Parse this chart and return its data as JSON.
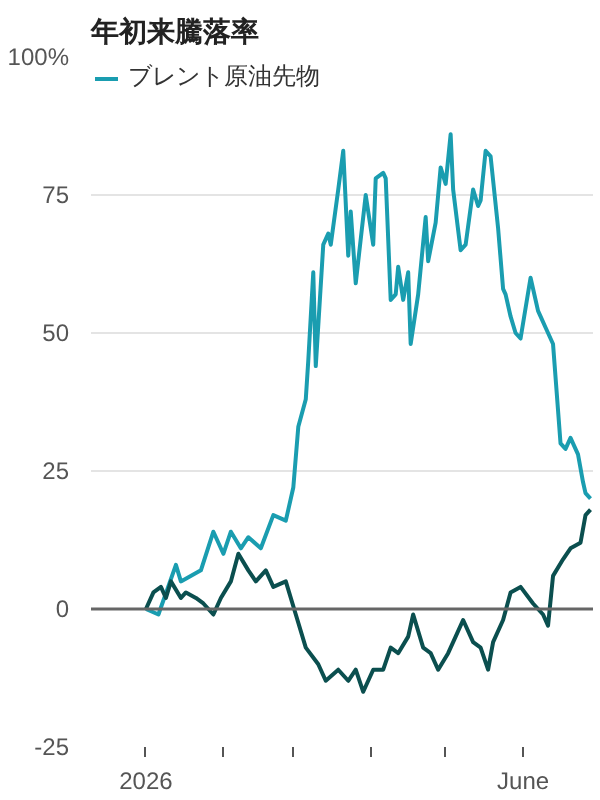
{
  "chart_data": {
    "type": "line",
    "title": "年初来騰落率",
    "xlim": [
      "2025-12-10",
      "2026-06-29"
    ],
    "ylim": [
      -25,
      100
    ],
    "xticks": [
      {
        "value": "2026-01-01",
        "label": "2026"
      },
      {
        "value": "2026-02-01",
        "label": null
      },
      {
        "value": "2026-03-01",
        "label": null
      },
      {
        "value": "2026-04-01",
        "label": null
      },
      {
        "value": "2026-05-01",
        "label": null
      },
      {
        "value": "2026-06-01",
        "label": "June"
      }
    ],
    "yticks": [
      -25,
      0,
      25,
      50,
      75,
      {
        "value": 100,
        "label": "100%"
      }
    ],
    "grid": "y",
    "legend": "top left",
    "line_style": "solid",
    "marker": "none",
    "ref_lines": [
      {
        "axis": "y",
        "value": 0,
        "label": null,
        "color": "#666666"
      }
    ],
    "series": [
      {
        "name": "ブレント原油先物",
        "color": "#1a9db0",
        "x": [
          "2026-01-01",
          "2026-01-06",
          "2026-01-13",
          "2026-01-15",
          "2026-01-23",
          "2026-01-28",
          "2026-02-01",
          "2026-02-04",
          "2026-02-08",
          "2026-02-11",
          "2026-02-16",
          "2026-02-21",
          "2026-02-26",
          "2026-03-01",
          "2026-03-03",
          "2026-03-06",
          "2026-03-07",
          "2026-03-09",
          "2026-03-10",
          "2026-03-13",
          "2026-03-15",
          "2026-03-16",
          "2026-03-19",
          "2026-03-21",
          "2026-03-23",
          "2026-03-24",
          "2026-03-26",
          "2026-03-29",
          "2026-03-30",
          "2026-04-02",
          "2026-04-03",
          "2026-04-06",
          "2026-04-07",
          "2026-04-09",
          "2026-04-11",
          "2026-04-12",
          "2026-04-14",
          "2026-04-16",
          "2026-04-17",
          "2026-04-20",
          "2026-04-23",
          "2026-04-24",
          "2026-04-27",
          "2026-04-29",
          "2026-05-01",
          "2026-05-03",
          "2026-05-04",
          "2026-05-07",
          "2026-05-09",
          "2026-05-12",
          "2026-05-14",
          "2026-05-15",
          "2026-05-17",
          "2026-05-19",
          "2026-05-22",
          "2026-05-24",
          "2026-05-25",
          "2026-05-27",
          "2026-05-29",
          "2026-05-31",
          "2026-06-04",
          "2026-06-07",
          "2026-06-08",
          "2026-06-10",
          "2026-06-13",
          "2026-06-16",
          "2026-06-18",
          "2026-06-20",
          "2026-06-23",
          "2026-06-25",
          "2026-06-26",
          "2026-06-28"
        ],
        "values": [
          0,
          -1,
          8,
          5,
          7,
          14,
          10,
          14,
          11,
          13,
          11,
          17,
          16,
          22,
          33,
          38,
          45,
          61,
          44,
          66,
          68,
          66,
          76,
          83,
          64,
          72,
          59,
          71,
          75,
          66,
          78,
          79,
          78,
          56,
          57,
          62,
          56,
          61,
          48,
          57,
          71,
          63,
          70,
          80,
          77,
          86,
          76,
          65,
          66,
          76,
          73,
          74,
          83,
          82,
          69,
          58,
          57,
          53,
          50,
          49,
          60,
          54,
          53,
          51,
          48,
          30,
          29,
          31,
          28,
          23,
          21,
          20
        ]
      },
      {
        "color": "#0b4f4f",
        "x": [
          "2026-01-01",
          "2026-01-04",
          "2026-01-07",
          "2026-01-09",
          "2026-01-11",
          "2026-01-15",
          "2026-01-17",
          "2026-01-21",
          "2026-01-24",
          "2026-01-28",
          "2026-01-31",
          "2026-02-04",
          "2026-02-07",
          "2026-02-11",
          "2026-02-14",
          "2026-02-18",
          "2026-02-21",
          "2026-02-26",
          "2026-03-02",
          "2026-03-06",
          "2026-03-11",
          "2026-03-14",
          "2026-03-19",
          "2026-03-23",
          "2026-03-26",
          "2026-03-29",
          "2026-04-02",
          "2026-04-06",
          "2026-04-09",
          "2026-04-12",
          "2026-04-16",
          "2026-04-18",
          "2026-04-22",
          "2026-04-25",
          "2026-04-28",
          "2026-05-02",
          "2026-05-05",
          "2026-05-08",
          "2026-05-12",
          "2026-05-15",
          "2026-05-18",
          "2026-05-20",
          "2026-05-24",
          "2026-05-27",
          "2026-05-31",
          "2026-06-05",
          "2026-06-09",
          "2026-06-11",
          "2026-06-13",
          "2026-06-17",
          "2026-06-20",
          "2026-06-24",
          "2026-06-26",
          "2026-06-28"
        ],
        "values": [
          0,
          3,
          4,
          2,
          5,
          2,
          3,
          2,
          1,
          -1,
          2,
          5,
          10,
          7,
          5,
          7,
          4,
          5,
          -1,
          -7,
          -10,
          -13,
          -11,
          -13,
          -11,
          -15,
          -11,
          -11,
          -7,
          -8,
          -5,
          -1,
          -7,
          -8,
          -11,
          -8,
          -5,
          -2,
          -6,
          -7,
          -11,
          -6,
          -2,
          3,
          4,
          1,
          -1,
          -3,
          6,
          9,
          11,
          12,
          17,
          18
        ]
      }
    ]
  }
}
